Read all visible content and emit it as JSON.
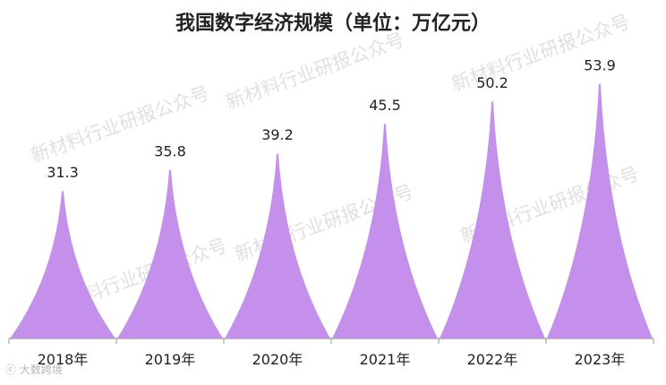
{
  "title": "我国数字经济规模（单位：万亿元）",
  "watermark_text": "新材料行业研报公众号",
  "footer_logo": "大数跨境",
  "colors": {
    "bar": "#c490ec",
    "axis": "#999999",
    "label": "#222222"
  },
  "chart_data": {
    "type": "bar",
    "title": "我国数字经济规模（单位：万亿元）",
    "categories": [
      "2018年",
      "2019年",
      "2020年",
      "2021年",
      "2022年",
      "2023年"
    ],
    "values": [
      31.3,
      35.8,
      39.2,
      45.5,
      50.2,
      53.9
    ],
    "xlabel": "",
    "ylabel": "",
    "ylim": [
      0,
      60
    ],
    "grid": false,
    "legend": "none",
    "data_labels": true
  }
}
